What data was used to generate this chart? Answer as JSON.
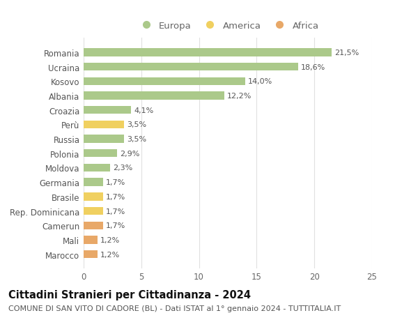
{
  "countries": [
    "Romania",
    "Ucraina",
    "Kosovo",
    "Albania",
    "Croazia",
    "Perù",
    "Russia",
    "Polonia",
    "Moldova",
    "Germania",
    "Brasile",
    "Rep. Dominicana",
    "Camerun",
    "Mali",
    "Marocco"
  ],
  "values": [
    21.5,
    18.6,
    14.0,
    12.2,
    4.1,
    3.5,
    3.5,
    2.9,
    2.3,
    1.7,
    1.7,
    1.7,
    1.7,
    1.2,
    1.2
  ],
  "labels": [
    "21,5%",
    "18,6%",
    "14,0%",
    "12,2%",
    "4,1%",
    "3,5%",
    "3,5%",
    "2,9%",
    "2,3%",
    "1,7%",
    "1,7%",
    "1,7%",
    "1,7%",
    "1,2%",
    "1,2%"
  ],
  "continents": [
    "Europa",
    "Europa",
    "Europa",
    "Europa",
    "Europa",
    "America",
    "Europa",
    "Europa",
    "Europa",
    "Europa",
    "America",
    "America",
    "Africa",
    "Africa",
    "Africa"
  ],
  "colors": {
    "Europa": "#abc98a",
    "America": "#f0d060",
    "Africa": "#e8a868"
  },
  "xlim": [
    0,
    25
  ],
  "xticks": [
    0,
    5,
    10,
    15,
    20,
    25
  ],
  "title": "Cittadini Stranieri per Cittadinanza - 2024",
  "subtitle": "COMUNE DI SAN VITO DI CADORE (BL) - Dati ISTAT al 1° gennaio 2024 - TUTTITALIA.IT",
  "background_color": "#ffffff",
  "grid_color": "#e0e0e0",
  "bar_height": 0.55,
  "title_fontsize": 10.5,
  "subtitle_fontsize": 8.0,
  "label_fontsize": 8.0,
  "tick_fontsize": 8.5,
  "legend_fontsize": 9.5
}
